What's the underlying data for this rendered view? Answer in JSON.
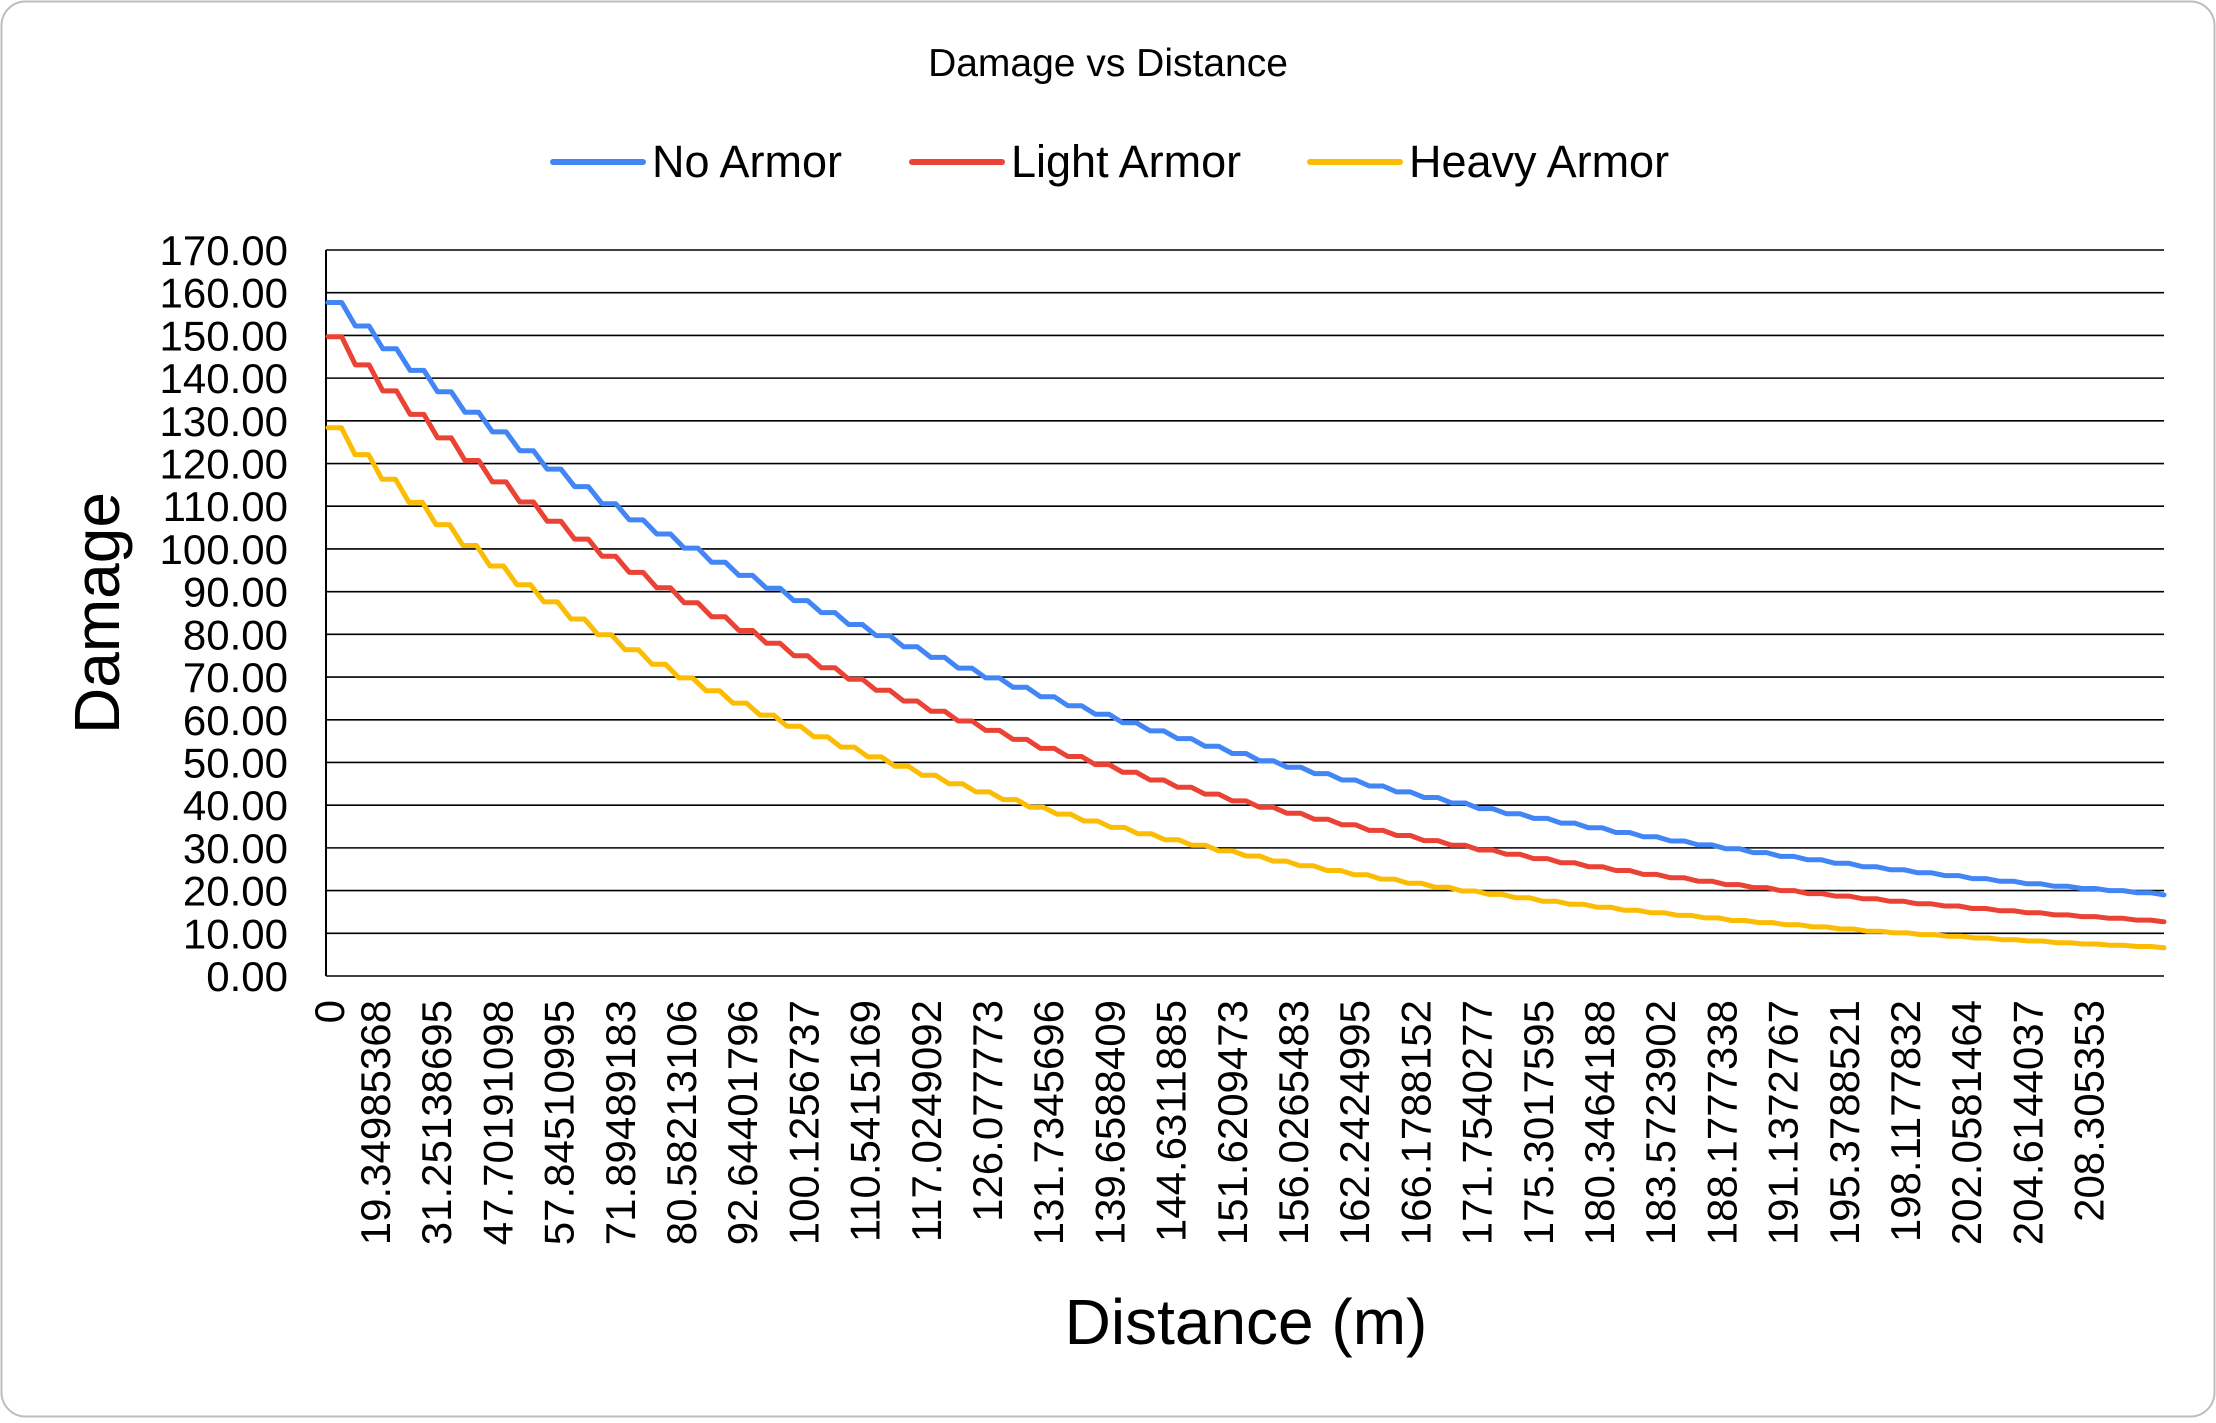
{
  "chart_data": {
    "type": "line",
    "title": "Damage vs Distance",
    "xlabel": "Distance (m)",
    "ylabel": "Damage",
    "ylim": [
      0,
      170
    ],
    "y_ticks": [
      "0.00",
      "10.00",
      "20.00",
      "30.00",
      "40.00",
      "50.00",
      "60.00",
      "70.00",
      "80.00",
      "90.00",
      "100.00",
      "110.00",
      "120.00",
      "130.00",
      "140.00",
      "150.00",
      "160.00",
      "170.00"
    ],
    "x_tick_labels": [
      "0",
      "19.34985368",
      "31.25138695",
      "47.70191098",
      "57.84510995",
      "71.89489183",
      "80.58213106",
      "92.64401796",
      "100.1256737",
      "110.5415169",
      "117.0249092",
      "126.077773",
      "131.7345696",
      "139.6588409",
      "144.6311885",
      "151.6209473",
      "156.0265483",
      "162.2424995",
      "166.1788152",
      "171.7540277",
      "175.3017595",
      "180.3464188",
      "183.5723902",
      "188.1777338",
      "191.1372767",
      "195.3788521",
      "198.1177832",
      "202.0581464",
      "204.6144037",
      "208.305353"
    ],
    "grid": true,
    "legend_position": "top",
    "step_style": true,
    "series": [
      {
        "name": "No Armor",
        "color": "#4285F4",
        "values": [
          157.7,
          157.7,
          152.2,
          152.2,
          146.9,
          146.9,
          141.8,
          141.8,
          136.8,
          136.8,
          132.0,
          132.0,
          127.4,
          127.4,
          123.0,
          123.0,
          118.7,
          118.7,
          114.6,
          114.6,
          110.6,
          110.6,
          106.8,
          106.8,
          103.5,
          103.5,
          100.2,
          100.2,
          96.9,
          96.9,
          93.8,
          93.8,
          90.8,
          90.8,
          87.9,
          87.9,
          85.1,
          85.1,
          82.3,
          82.3,
          79.7,
          79.7,
          77.1,
          77.1,
          74.6,
          74.6,
          72.1,
          72.1,
          69.8,
          69.8,
          67.6,
          67.6,
          65.4,
          65.4,
          63.3,
          63.3,
          61.3,
          61.3,
          59.3,
          59.3,
          57.4,
          57.4,
          55.6,
          55.6,
          53.8,
          53.8,
          52.1,
          52.1,
          50.4,
          50.4,
          48.9,
          48.9,
          47.4,
          47.4,
          45.9,
          45.9,
          44.5,
          44.5,
          43.1,
          43.1,
          41.8,
          41.8,
          40.5,
          40.5,
          39.2,
          39.2,
          38.0,
          38.0,
          36.9,
          36.9,
          35.8,
          35.8,
          34.7,
          34.7,
          33.6,
          33.6,
          32.6,
          32.6,
          31.6,
          31.6,
          30.7,
          30.7,
          29.8,
          29.8,
          28.9,
          28.9,
          28.0,
          28.0,
          27.2,
          27.2,
          26.4,
          26.4,
          25.6,
          25.6,
          24.9,
          24.9,
          24.2,
          24.2,
          23.5,
          23.5,
          22.8,
          22.8,
          22.2,
          22.2,
          21.6,
          21.6,
          21.0,
          21.0,
          20.5,
          20.5,
          20.0,
          20.0,
          19.5,
          19.5,
          19.0
        ]
      },
      {
        "name": "Light Armor",
        "color": "#EA4335",
        "values": [
          149.7,
          149.7,
          143.1,
          143.1,
          137.0,
          137.0,
          131.5,
          131.5,
          126.0,
          126.0,
          120.7,
          120.7,
          115.7,
          115.7,
          111.0,
          111.0,
          106.5,
          106.5,
          102.3,
          102.3,
          98.3,
          98.3,
          94.5,
          94.5,
          90.9,
          90.9,
          87.4,
          87.4,
          84.1,
          84.1,
          80.9,
          80.9,
          77.9,
          77.9,
          75.0,
          75.0,
          72.2,
          72.2,
          69.5,
          69.5,
          66.9,
          66.9,
          64.4,
          64.4,
          62.0,
          62.0,
          59.7,
          59.7,
          57.5,
          57.5,
          55.4,
          55.4,
          53.3,
          53.3,
          51.4,
          51.4,
          49.5,
          49.5,
          47.7,
          47.7,
          45.9,
          45.9,
          44.2,
          44.2,
          42.6,
          42.6,
          41.0,
          41.0,
          39.5,
          39.5,
          38.1,
          38.1,
          36.7,
          36.7,
          35.4,
          35.4,
          34.1,
          34.1,
          32.9,
          32.9,
          31.7,
          31.7,
          30.6,
          30.6,
          29.5,
          29.5,
          28.5,
          28.5,
          27.5,
          27.5,
          26.5,
          26.5,
          25.6,
          25.6,
          24.7,
          24.7,
          23.8,
          23.8,
          23.0,
          23.0,
          22.2,
          22.2,
          21.4,
          21.4,
          20.7,
          20.7,
          20.0,
          20.0,
          19.3,
          19.3,
          18.7,
          18.7,
          18.1,
          18.1,
          17.5,
          17.5,
          16.9,
          16.9,
          16.4,
          16.4,
          15.8,
          15.8,
          15.3,
          15.3,
          14.8,
          14.8,
          14.3,
          14.3,
          13.9,
          13.9,
          13.5,
          13.5,
          13.1,
          13.1,
          12.7
        ]
      },
      {
        "name": "Heavy Armor",
        "color": "#FBBC04",
        "values": [
          128.4,
          128.4,
          122.1,
          122.1,
          116.3,
          116.3,
          110.9,
          110.9,
          105.7,
          105.7,
          100.8,
          100.8,
          96.0,
          96.0,
          91.6,
          91.6,
          87.6,
          87.6,
          83.6,
          83.6,
          79.9,
          79.9,
          76.4,
          76.4,
          73.0,
          73.0,
          69.8,
          69.8,
          66.8,
          66.8,
          63.9,
          63.9,
          61.1,
          61.1,
          58.5,
          58.5,
          56.0,
          56.0,
          53.6,
          53.6,
          51.3,
          51.3,
          49.1,
          49.1,
          47.0,
          47.0,
          45.0,
          45.0,
          43.1,
          43.1,
          41.3,
          41.3,
          39.5,
          39.5,
          37.9,
          37.9,
          36.3,
          36.3,
          34.8,
          34.8,
          33.3,
          33.3,
          31.9,
          31.9,
          30.6,
          30.6,
          29.3,
          29.3,
          28.1,
          28.1,
          26.9,
          26.9,
          25.8,
          25.8,
          24.7,
          24.7,
          23.7,
          23.7,
          22.7,
          22.7,
          21.7,
          21.7,
          20.8,
          20.8,
          19.9,
          19.9,
          19.1,
          19.1,
          18.3,
          18.3,
          17.5,
          17.5,
          16.8,
          16.8,
          16.1,
          16.1,
          15.4,
          15.4,
          14.8,
          14.8,
          14.2,
          14.2,
          13.6,
          13.6,
          13.0,
          13.0,
          12.5,
          12.5,
          12.0,
          12.0,
          11.5,
          11.5,
          11.0,
          11.0,
          10.5,
          10.5,
          10.1,
          10.1,
          9.7,
          9.7,
          9.3,
          9.3,
          8.9,
          8.9,
          8.5,
          8.5,
          8.2,
          8.2,
          7.8,
          7.8,
          7.5,
          7.5,
          7.2,
          7.2,
          6.9,
          6.9,
          6.6
        ]
      }
    ]
  }
}
